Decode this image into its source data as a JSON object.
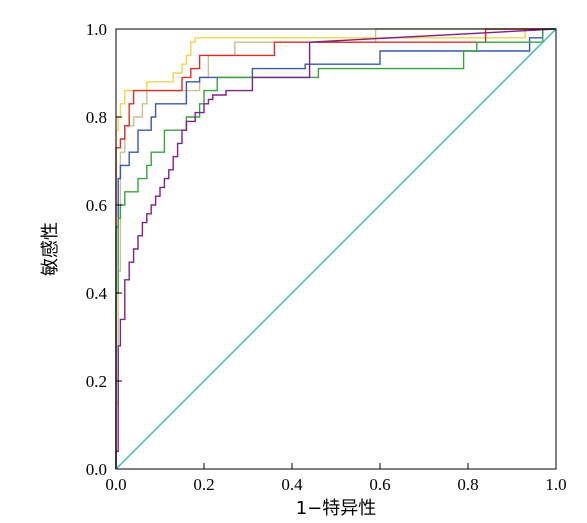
{
  "chart_data": {
    "type": "line",
    "title": "",
    "xlabel": "1−特异性",
    "ylabel": "敏感性",
    "xlim": [
      0,
      1
    ],
    "ylim": [
      0,
      1
    ],
    "xticks": [
      "0.0",
      "0.2",
      "0.4",
      "0.6",
      "0.8",
      "1.0"
    ],
    "yticks": [
      "0.0",
      "0.2",
      "0.4",
      "0.6",
      "0.8",
      "1.0"
    ],
    "grid": false,
    "legend": "none",
    "series": [
      {
        "color": "#f0d44a",
        "points": [
          [
            0,
            0
          ],
          [
            0,
            0.77
          ],
          [
            0.005,
            0.77
          ],
          [
            0.005,
            0.8
          ],
          [
            0.01,
            0.8
          ],
          [
            0.01,
            0.83
          ],
          [
            0.02,
            0.83
          ],
          [
            0.02,
            0.86
          ],
          [
            0.07,
            0.86
          ],
          [
            0.07,
            0.88
          ],
          [
            0.13,
            0.88
          ],
          [
            0.13,
            0.9
          ],
          [
            0.15,
            0.9
          ],
          [
            0.15,
            0.92
          ],
          [
            0.16,
            0.92
          ],
          [
            0.16,
            0.94
          ],
          [
            0.17,
            0.94
          ],
          [
            0.17,
            0.97
          ],
          [
            0.18,
            0.97
          ],
          [
            0.18,
            0.98
          ],
          [
            0.93,
            0.98
          ],
          [
            0.93,
            1.0
          ],
          [
            1,
            1
          ]
        ]
      },
      {
        "color": "#c8c090",
        "points": [
          [
            0,
            0
          ],
          [
            0,
            0.15
          ],
          [
            0.005,
            0.15
          ],
          [
            0.005,
            0.45
          ],
          [
            0.01,
            0.45
          ],
          [
            0.01,
            0.72
          ],
          [
            0.02,
            0.72
          ],
          [
            0.02,
            0.78
          ],
          [
            0.04,
            0.78
          ],
          [
            0.04,
            0.8
          ],
          [
            0.06,
            0.8
          ],
          [
            0.06,
            0.83
          ],
          [
            0.07,
            0.83
          ],
          [
            0.07,
            0.86
          ],
          [
            0.19,
            0.86
          ],
          [
            0.19,
            0.89
          ],
          [
            0.21,
            0.89
          ],
          [
            0.21,
            0.94
          ],
          [
            0.27,
            0.94
          ],
          [
            0.27,
            0.97
          ],
          [
            0.59,
            0.97
          ],
          [
            0.59,
            1.0
          ],
          [
            1,
            1
          ]
        ]
      },
      {
        "color": "#d83028",
        "points": [
          [
            0,
            0
          ],
          [
            0,
            0.73
          ],
          [
            0.01,
            0.73
          ],
          [
            0.01,
            0.75
          ],
          [
            0.02,
            0.75
          ],
          [
            0.02,
            0.78
          ],
          [
            0.03,
            0.78
          ],
          [
            0.03,
            0.83
          ],
          [
            0.04,
            0.83
          ],
          [
            0.04,
            0.86
          ],
          [
            0.15,
            0.86
          ],
          [
            0.15,
            0.89
          ],
          [
            0.17,
            0.89
          ],
          [
            0.17,
            0.91
          ],
          [
            0.19,
            0.91
          ],
          [
            0.19,
            0.94
          ],
          [
            0.36,
            0.94
          ],
          [
            0.36,
            0.97
          ],
          [
            0.84,
            0.97
          ],
          [
            0.84,
            1.0
          ],
          [
            1,
            1
          ]
        ]
      },
      {
        "color": "#3858b0",
        "points": [
          [
            0,
            0
          ],
          [
            0,
            0.55
          ],
          [
            0.005,
            0.55
          ],
          [
            0.005,
            0.66
          ],
          [
            0.01,
            0.66
          ],
          [
            0.01,
            0.69
          ],
          [
            0.03,
            0.69
          ],
          [
            0.03,
            0.72
          ],
          [
            0.05,
            0.72
          ],
          [
            0.05,
            0.77
          ],
          [
            0.08,
            0.77
          ],
          [
            0.08,
            0.8
          ],
          [
            0.09,
            0.8
          ],
          [
            0.09,
            0.83
          ],
          [
            0.16,
            0.83
          ],
          [
            0.16,
            0.88
          ],
          [
            0.19,
            0.88
          ],
          [
            0.19,
            0.89
          ],
          [
            0.31,
            0.89
          ],
          [
            0.31,
            0.91
          ],
          [
            0.43,
            0.91
          ],
          [
            0.43,
            0.92
          ],
          [
            0.6,
            0.92
          ],
          [
            0.6,
            0.95
          ],
          [
            0.94,
            0.95
          ],
          [
            0.94,
            0.98
          ],
          [
            0.97,
            0.98
          ],
          [
            0.97,
            1.0
          ],
          [
            1,
            1
          ]
        ]
      },
      {
        "color": "#3aa040",
        "points": [
          [
            0,
            0
          ],
          [
            0,
            0.4
          ],
          [
            0.005,
            0.4
          ],
          [
            0.005,
            0.57
          ],
          [
            0.01,
            0.57
          ],
          [
            0.01,
            0.6
          ],
          [
            0.02,
            0.6
          ],
          [
            0.02,
            0.63
          ],
          [
            0.05,
            0.63
          ],
          [
            0.05,
            0.66
          ],
          [
            0.07,
            0.66
          ],
          [
            0.07,
            0.69
          ],
          [
            0.08,
            0.69
          ],
          [
            0.08,
            0.72
          ],
          [
            0.11,
            0.72
          ],
          [
            0.11,
            0.77
          ],
          [
            0.16,
            0.77
          ],
          [
            0.16,
            0.8
          ],
          [
            0.19,
            0.8
          ],
          [
            0.19,
            0.83
          ],
          [
            0.2,
            0.83
          ],
          [
            0.2,
            0.86
          ],
          [
            0.23,
            0.86
          ],
          [
            0.23,
            0.89
          ],
          [
            0.46,
            0.89
          ],
          [
            0.46,
            0.91
          ],
          [
            0.79,
            0.91
          ],
          [
            0.79,
            0.95
          ],
          [
            0.82,
            0.95
          ],
          [
            0.82,
            0.97
          ],
          [
            0.97,
            0.97
          ],
          [
            0.97,
            1.0
          ],
          [
            1,
            1
          ]
        ]
      },
      {
        "color": "#80208a",
        "points": [
          [
            0,
            0
          ],
          [
            0,
            0.04
          ],
          [
            0.005,
            0.04
          ],
          [
            0.005,
            0.28
          ],
          [
            0.01,
            0.28
          ],
          [
            0.01,
            0.34
          ],
          [
            0.02,
            0.34
          ],
          [
            0.02,
            0.43
          ],
          [
            0.03,
            0.43
          ],
          [
            0.03,
            0.47
          ],
          [
            0.04,
            0.47
          ],
          [
            0.04,
            0.5
          ],
          [
            0.05,
            0.5
          ],
          [
            0.05,
            0.53
          ],
          [
            0.06,
            0.53
          ],
          [
            0.06,
            0.56
          ],
          [
            0.07,
            0.56
          ],
          [
            0.07,
            0.58
          ],
          [
            0.08,
            0.58
          ],
          [
            0.08,
            0.6
          ],
          [
            0.09,
            0.6
          ],
          [
            0.09,
            0.62
          ],
          [
            0.1,
            0.62
          ],
          [
            0.1,
            0.64
          ],
          [
            0.11,
            0.64
          ],
          [
            0.11,
            0.66
          ],
          [
            0.12,
            0.66
          ],
          [
            0.12,
            0.68
          ],
          [
            0.13,
            0.68
          ],
          [
            0.13,
            0.71
          ],
          [
            0.14,
            0.71
          ],
          [
            0.14,
            0.74
          ],
          [
            0.15,
            0.74
          ],
          [
            0.15,
            0.77
          ],
          [
            0.16,
            0.77
          ],
          [
            0.16,
            0.79
          ],
          [
            0.18,
            0.79
          ],
          [
            0.18,
            0.81
          ],
          [
            0.2,
            0.81
          ],
          [
            0.2,
            0.83
          ],
          [
            0.21,
            0.83
          ],
          [
            0.21,
            0.84
          ],
          [
            0.22,
            0.84
          ],
          [
            0.22,
            0.85
          ],
          [
            0.25,
            0.85
          ],
          [
            0.25,
            0.86
          ],
          [
            0.31,
            0.86
          ],
          [
            0.31,
            0.89
          ],
          [
            0.44,
            0.89
          ],
          [
            0.44,
            0.97
          ],
          [
            1,
            1
          ]
        ]
      },
      {
        "color": "#38b8c0",
        "points": [
          [
            0,
            0
          ],
          [
            1,
            1
          ]
        ]
      }
    ]
  }
}
